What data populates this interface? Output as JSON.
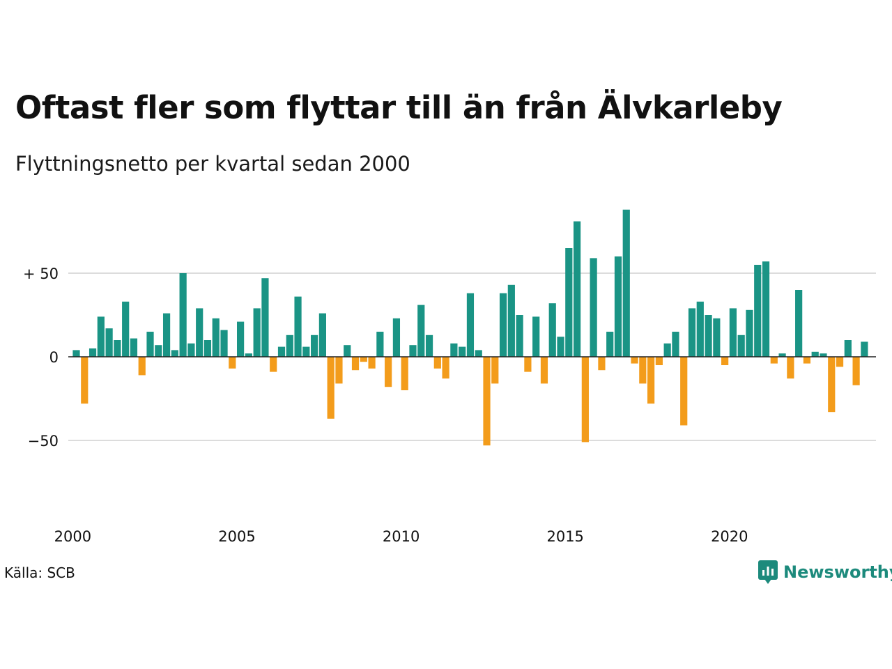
{
  "title": "Oftast fler som flyttar till än från Älvkarleby",
  "subtitle": "Flyttningsnetto per kvartal sedan 2000",
  "source": "Källa: SCB",
  "brand": "Newsworthy",
  "colors": {
    "positive": "#1a9485",
    "negative": "#f39c1b",
    "brand": "#1c8a7c"
  },
  "chart_data": {
    "type": "bar",
    "title": "Oftast fler som flyttar till än från Älvkarleby",
    "subtitle": "Flyttningsnetto per kvartal sedan 2000",
    "x_start": "2000 Q1",
    "x_ticks": [
      "2000",
      "2005",
      "2010",
      "2015",
      "2020"
    ],
    "y_ticks": [
      {
        "value": 50,
        "label": "+ 50"
      },
      {
        "value": 0,
        "label": "0"
      },
      {
        "value": -50,
        "label": "−50"
      }
    ],
    "ylim": [
      -70,
      90
    ],
    "grid": true,
    "values": [
      4,
      -28,
      5,
      24,
      17,
      10,
      33,
      11,
      -11,
      15,
      7,
      26,
      4,
      50,
      8,
      29,
      10,
      23,
      16,
      -7,
      21,
      2,
      29,
      47,
      -9,
      6,
      13,
      36,
      6,
      13,
      26,
      -37,
      -16,
      7,
      -8,
      -3,
      -7,
      15,
      -18,
      23,
      -20,
      7,
      31,
      13,
      -7,
      -13,
      8,
      6,
      38,
      4,
      -53,
      -16,
      38,
      43,
      25,
      -9,
      24,
      -16,
      32,
      12,
      65,
      81,
      -51,
      59,
      -8,
      15,
      60,
      88,
      -4,
      -16,
      -28,
      -5,
      8,
      15,
      -41,
      29,
      33,
      25,
      23,
      -5,
      29,
      13,
      28,
      55,
      57,
      -4,
      2,
      -13,
      40,
      -4,
      3,
      2,
      -33,
      -6,
      10,
      -17,
      9
    ]
  }
}
